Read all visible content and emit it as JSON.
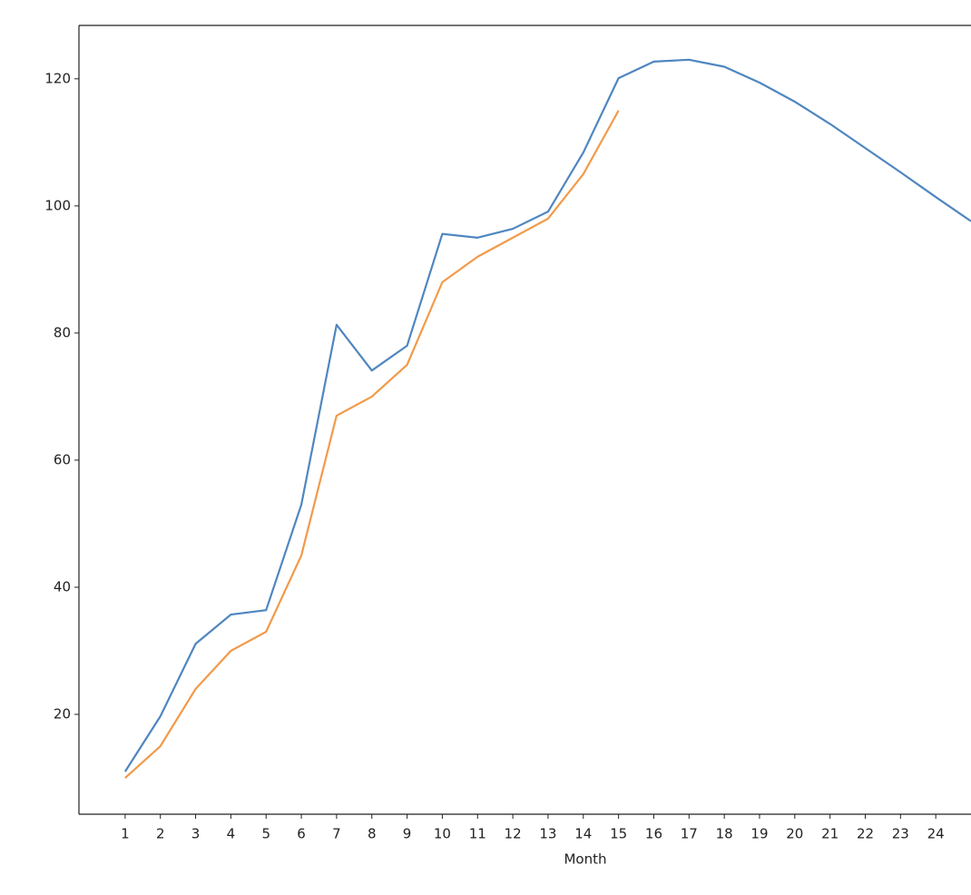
{
  "chart_data": {
    "type": "line",
    "x_label": "Month",
    "x": [
      1,
      2,
      3,
      4,
      5,
      6,
      7,
      8,
      9,
      10,
      11,
      12,
      13,
      14,
      15,
      16,
      17,
      18,
      19,
      20,
      21,
      22,
      23,
      24,
      25
    ],
    "series": [
      {
        "color": "#4f86c0",
        "values": [
          11.0,
          19.7,
          31.1,
          35.7,
          36.4,
          53.0,
          81.3,
          74.1,
          78.0,
          95.6,
          95.0,
          96.4,
          99.1,
          108.4,
          120.1,
          122.7,
          123.0,
          121.9,
          119.4,
          116.4,
          112.9,
          109.1,
          105.3,
          101.4,
          97.6
        ]
      },
      {
        "color": "#f29a4a",
        "values": [
          10,
          15,
          24,
          30,
          33,
          45,
          67,
          70,
          75,
          88,
          92,
          95,
          98,
          105,
          115,
          null,
          null,
          null,
          null,
          null,
          null,
          null,
          null,
          null,
          null
        ]
      }
    ],
    "xlim": [
      -0.31,
      25
    ],
    "xticks": [
      1,
      2,
      3,
      4,
      5,
      6,
      7,
      8,
      9,
      10,
      11,
      12,
      13,
      14,
      15,
      16,
      17,
      18,
      19,
      20,
      21,
      22,
      23,
      24
    ],
    "ylim": [
      4.29,
      128.4
    ],
    "yticks": [
      20,
      40,
      60,
      80,
      100,
      120
    ],
    "grid": false
  }
}
